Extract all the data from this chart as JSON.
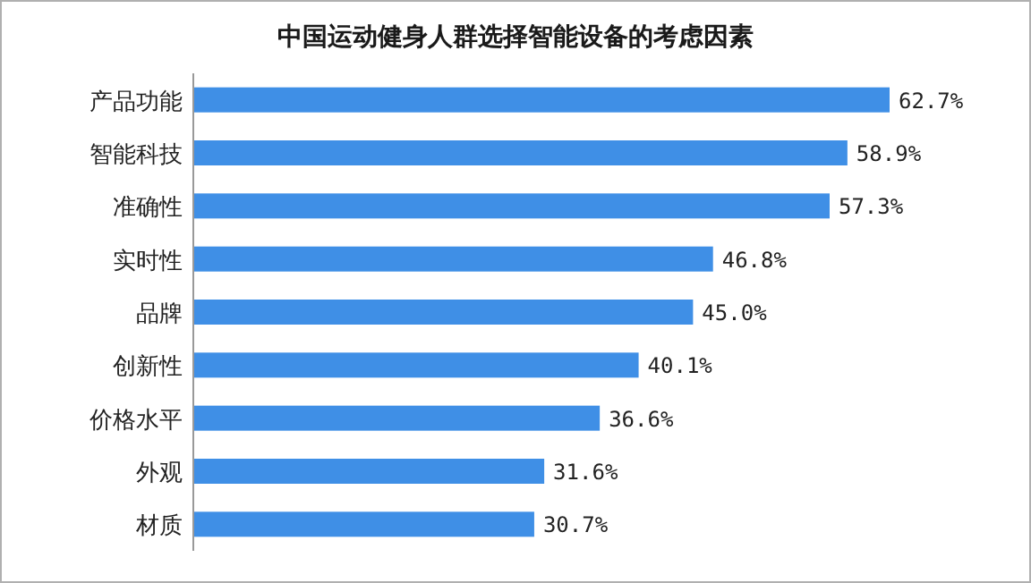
{
  "chart_data": {
    "type": "bar",
    "orientation": "horizontal",
    "title": "中国运动健身人群选择智能设备的考虑因素",
    "categories": [
      "产品功能",
      "智能科技",
      "准确性",
      "实时性",
      "品牌",
      "创新性",
      "价格水平",
      "外观",
      "材质"
    ],
    "values": [
      62.7,
      58.9,
      57.3,
      46.8,
      45.0,
      40.1,
      36.6,
      31.6,
      30.7
    ],
    "value_labels": [
      "62.7%",
      "58.9%",
      "57.3%",
      "46.8%",
      "45.0%",
      "40.1%",
      "36.6%",
      "31.6%",
      "30.7%"
    ],
    "color": "#3f8fe6"
  }
}
